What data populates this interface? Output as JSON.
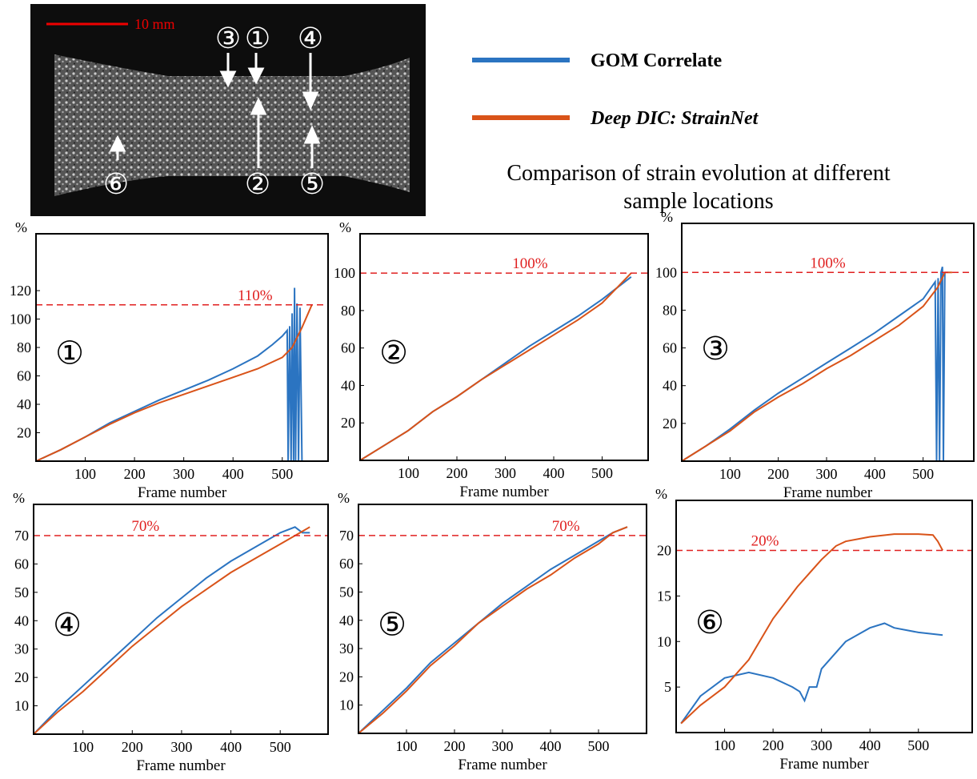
{
  "image": {
    "scale_bar": "10 mm",
    "markers": [
      "③",
      "①",
      "④",
      "②",
      "⑤",
      "⑥"
    ]
  },
  "title": [
    "Comparison of strain evolution at different",
    "sample locations"
  ],
  "chart_data": [
    {
      "type": "line",
      "location": "①",
      "xlabel": "Frame number",
      "ylabel": "%",
      "xlim": [
        0,
        593
      ],
      "ylim": [
        0,
        160
      ],
      "xticks": [
        100,
        200,
        300,
        400,
        500
      ],
      "yticks": [
        20,
        40,
        60,
        80,
        100,
        120
      ],
      "threshold": {
        "value": 110,
        "label": "110%"
      },
      "series": [
        {
          "name": "GOM Correlate",
          "color": "#2b74c1",
          "x": [
            0,
            50,
            100,
            150,
            200,
            250,
            300,
            350,
            400,
            450,
            480,
            500,
            510,
            512,
            515,
            518,
            520,
            523,
            525,
            527,
            530,
            533,
            536,
            540
          ],
          "values": [
            0,
            8,
            17,
            27,
            35,
            43,
            50,
            57,
            65,
            74,
            82,
            88,
            92,
            0,
            95,
            0,
            104,
            0,
            122,
            0,
            111,
            0,
            108,
            0
          ]
        },
        {
          "name": "Deep DIC: StrainNet",
          "color": "#d95319",
          "x": [
            0,
            50,
            100,
            150,
            200,
            250,
            300,
            350,
            400,
            450,
            500,
            520,
            540,
            560
          ],
          "values": [
            0,
            8,
            17,
            26,
            34,
            41,
            47,
            53,
            59,
            65,
            73,
            80,
            94,
            110
          ]
        }
      ]
    },
    {
      "type": "line",
      "location": "②",
      "xlabel": "Frame number",
      "ylabel": "%",
      "xlim": [
        0,
        595
      ],
      "ylim": [
        0,
        121
      ],
      "xticks": [
        100,
        200,
        300,
        400,
        500
      ],
      "yticks": [
        20,
        40,
        60,
        80,
        100
      ],
      "threshold": {
        "value": 100,
        "label": "100%"
      },
      "series": [
        {
          "name": "GOM Correlate",
          "color": "#2b74c1",
          "x": [
            0,
            50,
            100,
            150,
            200,
            250,
            300,
            350,
            400,
            450,
            500,
            530,
            560
          ],
          "values": [
            0,
            8,
            16,
            26,
            34,
            43,
            52,
            61,
            69,
            77,
            86,
            92,
            98
          ]
        },
        {
          "name": "Deep DIC: StrainNet",
          "color": "#d95319",
          "x": [
            0,
            50,
            100,
            150,
            200,
            250,
            300,
            350,
            400,
            450,
            500,
            530,
            560
          ],
          "values": [
            0,
            8,
            16,
            26,
            34,
            43,
            51,
            59,
            67,
            75,
            84,
            92,
            100
          ]
        }
      ]
    },
    {
      "type": "line",
      "location": "③",
      "xlabel": "Frame number",
      "ylabel": "%",
      "xlim": [
        0,
        605
      ],
      "ylim": [
        0,
        126
      ],
      "xticks": [
        100,
        200,
        300,
        400,
        500
      ],
      "yticks": [
        20,
        40,
        60,
        80,
        100
      ],
      "threshold": {
        "value": 100,
        "label": "100%"
      },
      "series": [
        {
          "name": "GOM Correlate",
          "color": "#2b74c1",
          "x": [
            0,
            50,
            100,
            150,
            200,
            250,
            300,
            350,
            400,
            450,
            500,
            525,
            528,
            531,
            534,
            537,
            540,
            542,
            545
          ],
          "values": [
            0,
            8,
            17,
            27,
            36,
            44,
            52,
            60,
            68,
            77,
            86,
            95,
            0,
            97,
            0,
            100,
            103,
            0,
            100
          ]
        },
        {
          "name": "Deep DIC: StrainNet",
          "color": "#d95319",
          "x": [
            0,
            50,
            100,
            150,
            200,
            250,
            300,
            350,
            400,
            450,
            500,
            530,
            545,
            560
          ],
          "values": [
            0,
            8,
            16,
            26,
            34,
            41,
            49,
            56,
            64,
            72,
            82,
            92,
            100,
            100
          ]
        }
      ]
    },
    {
      "type": "line",
      "location": "④",
      "xlabel": "Frame number",
      "ylabel": "%",
      "xlim": [
        0,
        597
      ],
      "ylim": [
        0,
        81
      ],
      "xticks": [
        100,
        200,
        300,
        400,
        500
      ],
      "yticks": [
        10,
        20,
        30,
        40,
        50,
        60,
        70
      ],
      "threshold": {
        "value": 70,
        "label": "70%"
      },
      "series": [
        {
          "name": "GOM Correlate",
          "color": "#2b74c1",
          "x": [
            0,
            50,
            100,
            150,
            200,
            250,
            300,
            350,
            400,
            450,
            500,
            530,
            545,
            560
          ],
          "values": [
            0,
            9,
            17,
            25,
            33,
            41,
            48,
            55,
            61,
            66,
            71,
            73,
            71,
            71
          ]
        },
        {
          "name": "Deep DIC: StrainNet",
          "color": "#d95319",
          "x": [
            0,
            50,
            100,
            150,
            200,
            250,
            300,
            350,
            400,
            450,
            500,
            530,
            560
          ],
          "values": [
            0,
            8,
            15,
            23,
            31,
            38,
            45,
            51,
            57,
            62,
            67,
            70,
            73
          ]
        }
      ]
    },
    {
      "type": "line",
      "location": "⑤",
      "xlabel": "Frame number",
      "ylabel": "%",
      "xlim": [
        0,
        600
      ],
      "ylim": [
        0,
        81
      ],
      "xticks": [
        100,
        200,
        300,
        400,
        500
      ],
      "yticks": [
        10,
        20,
        30,
        40,
        50,
        60,
        70
      ],
      "threshold": {
        "value": 70,
        "label": "70%"
      },
      "series": [
        {
          "name": "GOM Correlate",
          "color": "#2b74c1",
          "x": [
            0,
            50,
            100,
            150,
            200,
            250,
            300,
            350,
            400,
            450,
            500,
            530,
            560
          ],
          "values": [
            0,
            8,
            16,
            25,
            32,
            39,
            46,
            52,
            58,
            63,
            68,
            71,
            73
          ]
        },
        {
          "name": "Deep DIC: StrainNet",
          "color": "#d95319",
          "x": [
            0,
            50,
            100,
            150,
            200,
            250,
            300,
            350,
            400,
            450,
            500,
            530,
            560
          ],
          "values": [
            0,
            7,
            15,
            24,
            31,
            39,
            45,
            51,
            56,
            62,
            67,
            71,
            73
          ]
        }
      ]
    },
    {
      "type": "line",
      "location": "⑥",
      "xlabel": "Frame number",
      "ylabel": "%",
      "xlim": [
        0,
        611
      ],
      "ylim": [
        0,
        25.5
      ],
      "xticks": [
        100,
        200,
        300,
        400,
        500
      ],
      "yticks": [
        5,
        10,
        15,
        20
      ],
      "threshold": {
        "value": 20,
        "label": "20%"
      },
      "series": [
        {
          "name": "GOM Correlate",
          "color": "#2b74c1",
          "x": [
            10,
            50,
            100,
            150,
            200,
            240,
            255,
            265,
            275,
            290,
            300,
            350,
            400,
            430,
            450,
            500,
            550
          ],
          "values": [
            1,
            4,
            6,
            6.6,
            6,
            5,
            4.5,
            3.5,
            5,
            5,
            7,
            10,
            11.5,
            12,
            11.5,
            11,
            10.7
          ]
        },
        {
          "name": "Deep DIC: StrainNet",
          "color": "#d95319",
          "x": [
            10,
            50,
            100,
            150,
            200,
            250,
            300,
            330,
            350,
            400,
            450,
            500,
            530,
            540,
            550
          ],
          "values": [
            1,
            3,
            5,
            8,
            12.5,
            16,
            19,
            20.5,
            21,
            21.5,
            21.8,
            21.8,
            21.7,
            21,
            20
          ]
        }
      ]
    }
  ]
}
